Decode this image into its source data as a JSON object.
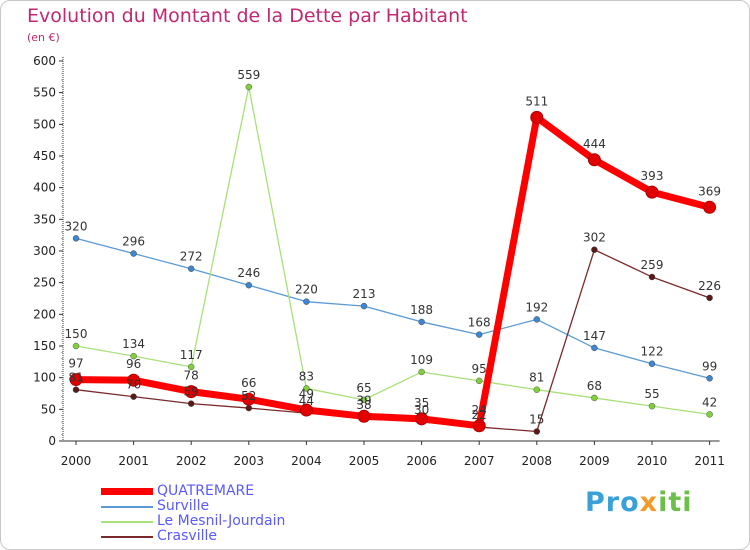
{
  "chart_data": {
    "type": "line",
    "title": "Evolution du Montant de la Dette par Habitant",
    "subtitle": "(en €)",
    "x": [
      "2000",
      "2001",
      "2002",
      "2003",
      "2004",
      "2005",
      "2006",
      "2007",
      "2008",
      "2009",
      "2010",
      "2011"
    ],
    "ylim": [
      0,
      600
    ],
    "yticks": [
      0,
      50,
      100,
      150,
      200,
      250,
      300,
      350,
      400,
      450,
      500,
      550,
      600
    ],
    "grid": false,
    "legend_position": "bottom-left",
    "series": [
      {
        "name": "Surville",
        "color": "#5b9bd5",
        "marker": "#3f86d0",
        "values": [
          320,
          296,
          272,
          246,
          220,
          213,
          188,
          168,
          192,
          147,
          122,
          99
        ]
      },
      {
        "name": "Le Mesnil-Jourdain",
        "color": "#a8e07a",
        "marker": "#7fd03a",
        "values": [
          150,
          134,
          117,
          559,
          83,
          65,
          109,
          95,
          81,
          68,
          55,
          42
        ]
      },
      {
        "name": "Crasville",
        "color": "#7a2a2a",
        "marker": "#5a1a1a",
        "values": [
          81,
          70,
          59,
          52,
          44,
          38,
          30,
          22,
          15,
          302,
          259,
          226
        ]
      },
      {
        "name": "QUATREMARE",
        "color": "#ff0000",
        "marker": "#e00000",
        "values": [
          97,
          96,
          78,
          66,
          49,
          39,
          35,
          24,
          511,
          444,
          393,
          369
        ]
      }
    ],
    "legend": [
      "QUATREMARE",
      "Surville",
      "Le Mesnil-Jourdain",
      "Crasville"
    ]
  },
  "logo": {
    "p1": "Pro",
    "p2": "x",
    "p3": "iti"
  }
}
